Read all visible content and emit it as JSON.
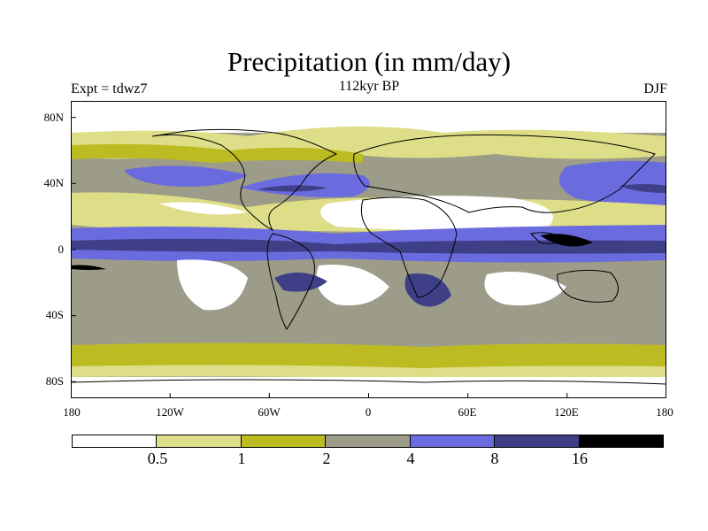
{
  "title": "Precipitation (in mm/day)",
  "expt_label": "Expt = tdwz7",
  "period_label": "112kyr BP",
  "season_label": "DJF",
  "y_ticks": [
    "80N",
    "40N",
    "0",
    "40S",
    "80S"
  ],
  "x_ticks": [
    "180",
    "120W",
    "60W",
    "0",
    "60E",
    "120E",
    "180"
  ],
  "colorbar": {
    "colors": [
      "#ffffff",
      "#dede88",
      "#bcbc22",
      "#9c9c88",
      "#6b6be0",
      "#3f3f88",
      "#000000"
    ],
    "labels": [
      "0.5",
      "1",
      "2",
      "4",
      "8",
      "16"
    ]
  },
  "chart_data": {
    "type": "heatmap",
    "title": "Precipitation (in mm/day)",
    "units": "mm/day",
    "levels": [
      0.5,
      1,
      2,
      4,
      8,
      16
    ],
    "xlim": [
      -180,
      180
    ],
    "ylim": [
      -90,
      90
    ],
    "bands_by_latitude": [
      {
        "lat": "80-90N",
        "category": "<0.5"
      },
      {
        "lat": "60-80N",
        "category": "0.5-1"
      },
      {
        "lat": "35-55N ocean",
        "category": "2-8"
      },
      {
        "lat": "15-30N ocean",
        "category": "0.5-2"
      },
      {
        "lat": "0-10N",
        "category": "4-16"
      },
      {
        "lat": "10-30S ocean",
        "category": "0.5-4"
      },
      {
        "lat": "30-55S",
        "category": "2-4"
      },
      {
        "lat": "55-70S",
        "category": "1-2"
      },
      {
        "lat": "75-90S",
        "category": "<0.5"
      }
    ]
  }
}
